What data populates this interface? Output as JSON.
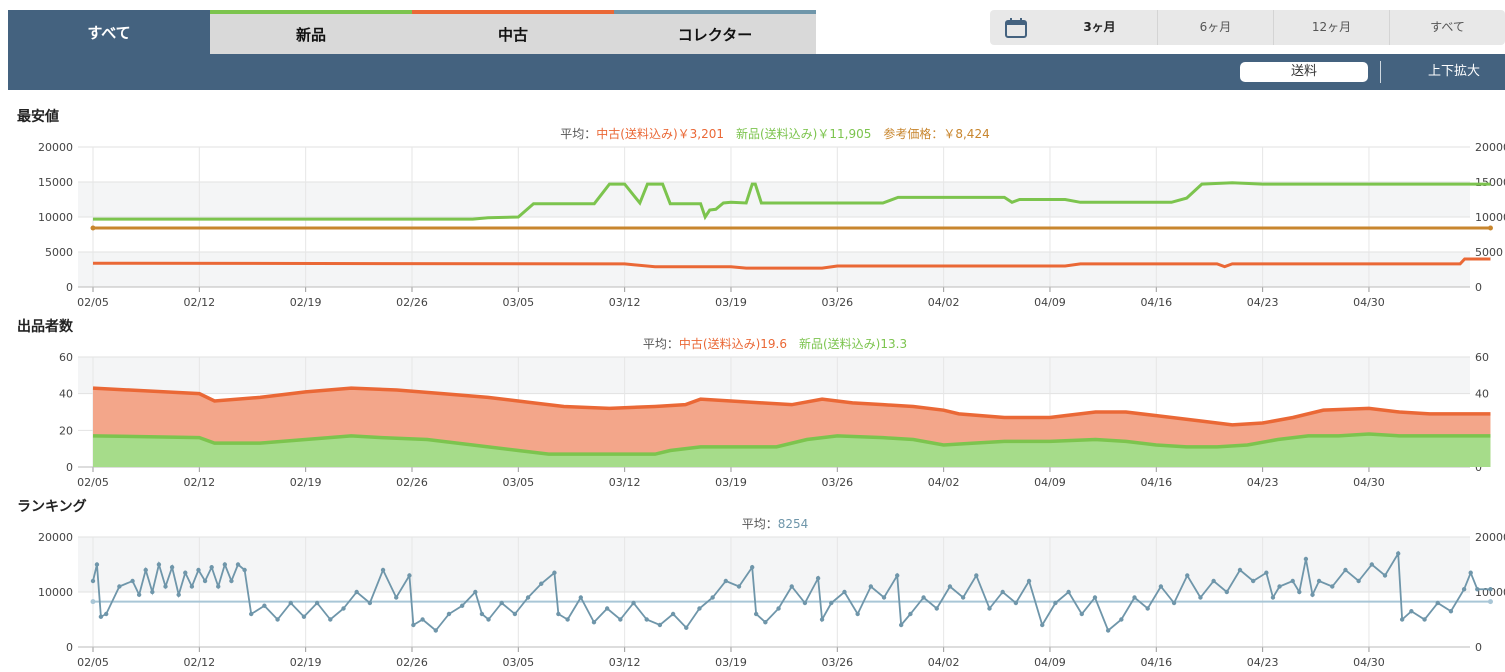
{
  "tabs": [
    {
      "label": "すべて",
      "color": "#44627f"
    },
    {
      "label": "新品",
      "color": "#7cc44e"
    },
    {
      "label": "中古",
      "color": "#ea6836"
    },
    {
      "label": "コレクター",
      "color": "#6f96aa"
    }
  ],
  "range_buttons": [
    "3ヶ月",
    "6ヶ月",
    "12ヶ月",
    "すべて"
  ],
  "shipping_label": "送料",
  "zoom_label": "上下拡大",
  "icons": {
    "calendar": "calendar-icon"
  },
  "dates": [
    "02/05",
    "02/12",
    "02/19",
    "02/26",
    "03/05",
    "03/12",
    "03/19",
    "03/26",
    "04/02",
    "04/09",
    "04/16",
    "04/23",
    "04/30"
  ],
  "chart_data": [
    {
      "type": "line",
      "title": "最安値",
      "summary": {
        "prefix": "平均：",
        "used": "中古(送料込み)￥3,201",
        "new": "新品(送料込み)￥11,905",
        "ref": "参考価格：￥8,424"
      },
      "ylim": [
        0,
        20000
      ],
      "yticks": [
        "0",
        "5000",
        "10000",
        "15000",
        "20000"
      ],
      "series": [
        {
          "name": "新品(送料込み)",
          "color": "#7cc44e",
          "points": [
            [
              0,
              9700
            ],
            [
              25,
              9700
            ],
            [
              26,
              9900
            ],
            [
              28,
              10000
            ],
            [
              29,
              11900
            ],
            [
              33,
              11900
            ],
            [
              34,
              14700
            ],
            [
              35,
              14700
            ],
            [
              36,
              12000
            ],
            [
              36.5,
              14700
            ],
            [
              37.5,
              14700
            ],
            [
              38,
              11900
            ],
            [
              40,
              11900
            ],
            [
              40.3,
              10000
            ],
            [
              40.6,
              11000
            ],
            [
              41,
              11100
            ],
            [
              41.5,
              12000
            ],
            [
              42,
              12100
            ],
            [
              43,
              12000
            ],
            [
              43.4,
              14700
            ],
            [
              43.6,
              14700
            ],
            [
              44,
              12000
            ],
            [
              52,
              12000
            ],
            [
              53,
              12800
            ],
            [
              60,
              12800
            ],
            [
              60.5,
              12100
            ],
            [
              61,
              12500
            ],
            [
              64,
              12500
            ],
            [
              65,
              12100
            ],
            [
              71,
              12100
            ],
            [
              72,
              12700
            ],
            [
              73,
              14700
            ],
            [
              75,
              14900
            ],
            [
              77,
              14700
            ],
            [
              92,
              14700
            ]
          ]
        },
        {
          "name": "参考価格",
          "color": "#c8862e",
          "points": [
            [
              0,
              8424
            ],
            [
              92,
              8424
            ]
          ]
        },
        {
          "name": "中古(送料込み)",
          "color": "#ea6836",
          "points": [
            [
              0,
              3400
            ],
            [
              35,
              3300
            ],
            [
              37,
              2900
            ],
            [
              42,
              2900
            ],
            [
              43,
              2700
            ],
            [
              48,
              2700
            ],
            [
              49,
              3000
            ],
            [
              64,
              3000
            ],
            [
              65,
              3300
            ],
            [
              74,
              3300
            ],
            [
              74.5,
              2900
            ],
            [
              75,
              3300
            ],
            [
              90,
              3300
            ],
            [
              90.3,
              4000
            ],
            [
              92,
              4000
            ]
          ]
        }
      ]
    },
    {
      "type": "area",
      "title": "出品者数",
      "summary": {
        "prefix": "平均：",
        "used": "中古(送料込み)19.6",
        "new": "新品(送料込み)13.3"
      },
      "ylim": [
        0,
        60
      ],
      "yticks": [
        "0",
        "20",
        "40",
        "60"
      ],
      "series": [
        {
          "name": "中古(送料込み)",
          "color": "#ea6836",
          "fill": "#f3a68a",
          "points": [
            [
              0,
              43
            ],
            [
              7,
              40
            ],
            [
              8,
              36
            ],
            [
              11,
              38
            ],
            [
              14,
              41
            ],
            [
              17,
              43
            ],
            [
              20,
              42
            ],
            [
              23,
              40
            ],
            [
              26,
              38
            ],
            [
              29,
              35
            ],
            [
              31,
              33
            ],
            [
              34,
              32
            ],
            [
              37,
              33
            ],
            [
              39,
              34
            ],
            [
              40,
              37
            ],
            [
              42,
              36
            ],
            [
              44,
              35
            ],
            [
              46,
              34
            ],
            [
              48,
              37
            ],
            [
              50,
              35
            ],
            [
              52,
              34
            ],
            [
              54,
              33
            ],
            [
              56,
              31
            ],
            [
              57,
              29
            ],
            [
              60,
              27
            ],
            [
              63,
              27
            ],
            [
              64,
              28
            ],
            [
              66,
              30
            ],
            [
              68,
              30
            ],
            [
              70,
              28
            ],
            [
              73,
              25
            ],
            [
              75,
              23
            ],
            [
              77,
              24
            ],
            [
              79,
              27
            ],
            [
              81,
              31
            ],
            [
              84,
              32
            ],
            [
              86,
              30
            ],
            [
              88,
              29
            ],
            [
              92,
              29
            ]
          ]
        },
        {
          "name": "新品(送料込み)",
          "color": "#7cc44e",
          "fill": "#a6dc8a",
          "points": [
            [
              0,
              17
            ],
            [
              7,
              16
            ],
            [
              8,
              13
            ],
            [
              11,
              13
            ],
            [
              14,
              15
            ],
            [
              17,
              17
            ],
            [
              19,
              16
            ],
            [
              22,
              15
            ],
            [
              25,
              12
            ],
            [
              28,
              9
            ],
            [
              30,
              7
            ],
            [
              33,
              7
            ],
            [
              35,
              7
            ],
            [
              37,
              7
            ],
            [
              38,
              9
            ],
            [
              40,
              11
            ],
            [
              43,
              11
            ],
            [
              45,
              11
            ],
            [
              47,
              15
            ],
            [
              49,
              17
            ],
            [
              52,
              16
            ],
            [
              54,
              15
            ],
            [
              56,
              12
            ],
            [
              58,
              13
            ],
            [
              60,
              14
            ],
            [
              63,
              14
            ],
            [
              66,
              15
            ],
            [
              68,
              14
            ],
            [
              70,
              12
            ],
            [
              72,
              11
            ],
            [
              74,
              11
            ],
            [
              76,
              12
            ],
            [
              78,
              15
            ],
            [
              80,
              17
            ],
            [
              82,
              17
            ],
            [
              84,
              18
            ],
            [
              86,
              17
            ],
            [
              92,
              17
            ]
          ]
        }
      ]
    },
    {
      "type": "line",
      "title": "ランキング",
      "summary": {
        "prefix": "平均：",
        "avg": "8254"
      },
      "ylim": [
        0,
        20000
      ],
      "yticks": [
        "0",
        "10000",
        "20000"
      ],
      "series": [
        {
          "name": "ランキング",
          "color": "#6f96aa",
          "points": [
            [
              0,
              12000
            ],
            [
              0.3,
              15000
            ],
            [
              0.6,
              5500
            ],
            [
              1,
              6000
            ],
            [
              2,
              11000
            ],
            [
              3,
              12000
            ],
            [
              3.5,
              9500
            ],
            [
              4,
              14000
            ],
            [
              4.5,
              10000
            ],
            [
              5,
              15000
            ],
            [
              5.5,
              11000
            ],
            [
              6,
              14500
            ],
            [
              6.5,
              9500
            ],
            [
              7,
              13500
            ],
            [
              7.5,
              11000
            ],
            [
              8,
              14000
            ],
            [
              8.5,
              12000
            ],
            [
              9,
              14500
            ],
            [
              9.5,
              11000
            ],
            [
              10,
              15000
            ],
            [
              10.5,
              12000
            ],
            [
              11,
              15000
            ],
            [
              11.5,
              14000
            ],
            [
              12,
              6000
            ],
            [
              13,
              7500
            ],
            [
              14,
              5000
            ],
            [
              15,
              8000
            ],
            [
              16,
              5500
            ],
            [
              17,
              8000
            ],
            [
              18,
              5000
            ],
            [
              19,
              7000
            ],
            [
              20,
              10000
            ],
            [
              21,
              8000
            ],
            [
              22,
              14000
            ],
            [
              23,
              9000
            ],
            [
              24,
              13000
            ],
            [
              24.3,
              4000
            ],
            [
              25,
              5000
            ],
            [
              26,
              3000
            ],
            [
              27,
              6000
            ],
            [
              28,
              7500
            ],
            [
              29,
              10000
            ],
            [
              29.5,
              6000
            ],
            [
              30,
              5000
            ],
            [
              31,
              8000
            ],
            [
              32,
              6000
            ],
            [
              33,
              9000
            ],
            [
              34,
              11500
            ],
            [
              35,
              13500
            ],
            [
              35.3,
              6000
            ],
            [
              36,
              5000
            ],
            [
              37,
              9000
            ],
            [
              38,
              4500
            ],
            [
              39,
              7000
            ],
            [
              40,
              5000
            ],
            [
              41,
              8000
            ],
            [
              42,
              5000
            ],
            [
              43,
              4000
            ],
            [
              44,
              6000
            ],
            [
              45,
              3500
            ],
            [
              46,
              7000
            ],
            [
              47,
              9000
            ],
            [
              48,
              12000
            ],
            [
              49,
              11000
            ],
            [
              50,
              14500
            ],
            [
              50.3,
              6000
            ],
            [
              51,
              4500
            ],
            [
              52,
              7000
            ],
            [
              53,
              11000
            ],
            [
              54,
              8000
            ],
            [
              55,
              12500
            ],
            [
              55.3,
              5000
            ],
            [
              56,
              8000
            ],
            [
              57,
              10000
            ],
            [
              58,
              6000
            ],
            [
              59,
              11000
            ],
            [
              60,
              9000
            ],
            [
              61,
              13000
            ],
            [
              61.3,
              4000
            ],
            [
              62,
              6000
            ],
            [
              63,
              9000
            ],
            [
              64,
              7000
            ],
            [
              65,
              11000
            ],
            [
              66,
              9000
            ],
            [
              67,
              13000
            ],
            [
              68,
              7000
            ],
            [
              69,
              10000
            ],
            [
              70,
              8000
            ],
            [
              71,
              12000
            ],
            [
              72,
              4000
            ],
            [
              73,
              8000
            ],
            [
              74,
              10000
            ],
            [
              75,
              6000
            ],
            [
              76,
              9000
            ],
            [
              77,
              3000
            ],
            [
              78,
              5000
            ],
            [
              79,
              9000
            ],
            [
              80,
              7000
            ],
            [
              81,
              11000
            ],
            [
              82,
              8000
            ],
            [
              83,
              13000
            ],
            [
              84,
              9000
            ],
            [
              85,
              12000
            ],
            [
              86,
              10000
            ],
            [
              87,
              14000
            ],
            [
              88,
              12000
            ],
            [
              89,
              13500
            ],
            [
              89.5,
              9000
            ],
            [
              90,
              11000
            ],
            [
              91,
              12000
            ],
            [
              91.5,
              10000
            ],
            [
              92,
              16000
            ],
            [
              92.5,
              9500
            ],
            [
              93,
              12000
            ],
            [
              94,
              11000
            ],
            [
              95,
              14000
            ],
            [
              96,
              12000
            ],
            [
              97,
              15000
            ],
            [
              98,
              13000
            ],
            [
              99,
              17000
            ],
            [
              99.3,
              5000
            ],
            [
              100,
              6500
            ],
            [
              101,
              5000
            ],
            [
              102,
              8000
            ],
            [
              103,
              6500
            ],
            [
              104,
              10500
            ],
            [
              104.5,
              13500
            ],
            [
              105,
              10500
            ],
            [
              106,
              10500
            ]
          ]
        }
      ],
      "avg_line": {
        "value": 8254,
        "color": "#a9c6d6"
      }
    }
  ]
}
